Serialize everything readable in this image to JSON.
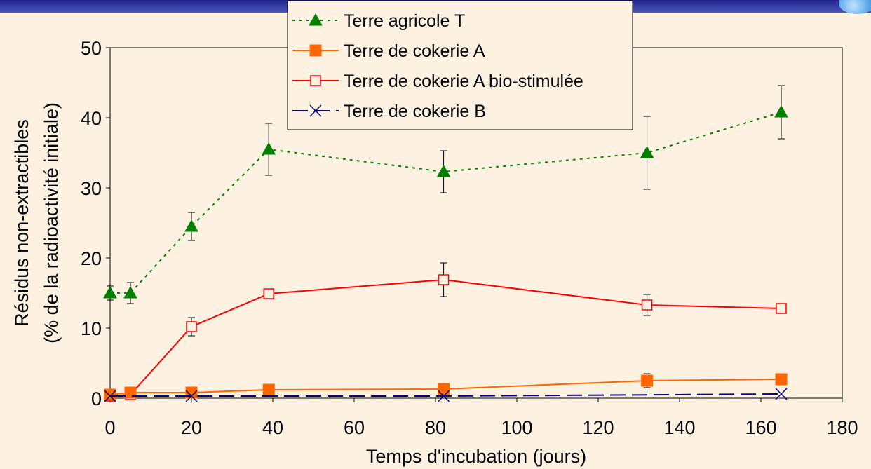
{
  "chart_data": {
    "type": "line",
    "title": "",
    "xlabel": "Temps d'incubation (jours)",
    "ylabel": [
      "Résidus non-extractibles",
      "(% de la radioactivité initiale)"
    ],
    "xlim": [
      0,
      180
    ],
    "ylim": [
      0,
      50
    ],
    "x_ticks": [
      0,
      20,
      40,
      60,
      80,
      100,
      120,
      140,
      160,
      180
    ],
    "y_ticks": [
      0,
      10,
      20,
      30,
      40,
      50
    ],
    "grid": false,
    "legend_position": "top-center",
    "series": [
      {
        "name": "Terre agricole T",
        "color": "#008000",
        "line_style": "dotted",
        "marker": "filled-triangle",
        "x": [
          0,
          5,
          20,
          39,
          82,
          132,
          165
        ],
        "y": [
          15.0,
          15.0,
          24.5,
          35.5,
          32.3,
          35.0,
          40.8
        ],
        "error": [
          1.0,
          1.5,
          2.0,
          3.7,
          3.0,
          5.2,
          3.8
        ]
      },
      {
        "name": "Terre de cokerie A",
        "color": "#ff6600",
        "line_style": "solid",
        "marker": "filled-square",
        "x": [
          0,
          5,
          20,
          39,
          82,
          132,
          165
        ],
        "y": [
          0.5,
          0.8,
          0.8,
          1.2,
          1.3,
          2.5,
          2.7
        ],
        "error": [
          0,
          0,
          0,
          0,
          0,
          1.0,
          0
        ]
      },
      {
        "name": "Terre de cokerie A bio-stimulée",
        "color": "#ff0000",
        "line_style": "solid",
        "marker": "open-square",
        "x": [
          0,
          5,
          20,
          39,
          82,
          132,
          165
        ],
        "y": [
          0.3,
          0.5,
          10.2,
          14.9,
          16.9,
          13.3,
          12.8
        ],
        "error": [
          0,
          0,
          1.3,
          0.7,
          2.4,
          1.5,
          0
        ]
      },
      {
        "name": "Terre de cokerie B",
        "color": "#000080",
        "line_style": "dashed",
        "marker": "x",
        "x": [
          0,
          20,
          82,
          165
        ],
        "y": [
          0.3,
          0.3,
          0.3,
          0.6
        ],
        "error": [
          0,
          0,
          0,
          0
        ]
      }
    ]
  }
}
